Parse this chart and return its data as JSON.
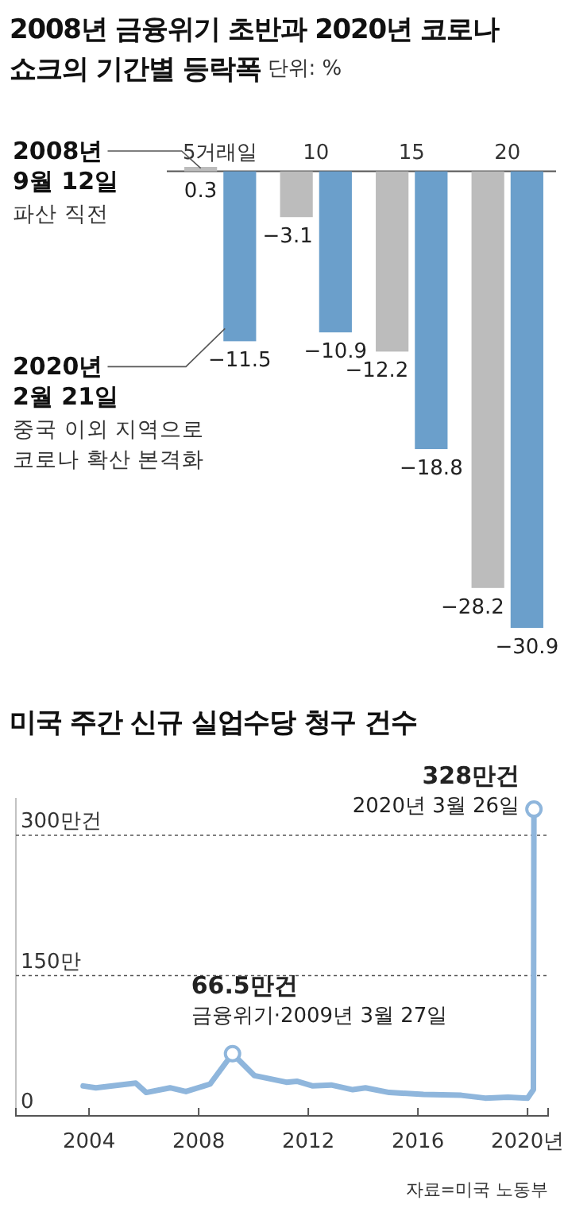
{
  "chart_data": [
    {
      "type": "bar",
      "title": "2008년 금융위기 초반과 2020년 코로나 쇼크의 기간별 등락폭",
      "subtitle": "단위: %",
      "categories": [
        "5거래일",
        "10",
        "15",
        "20"
      ],
      "series": [
        {
          "name": "2008년 9월 12일",
          "color": "#bcbcbc",
          "values": [
            0.3,
            -3.1,
            -12.2,
            -28.2
          ]
        },
        {
          "name": "2020년 2월 21일",
          "color": "#6b9fcb",
          "values": [
            -11.5,
            -10.9,
            -18.8,
            -30.9
          ]
        }
      ],
      "annotations": [
        "파산 직전",
        "중국 이외 지역으로 코로나 확산 본격화"
      ],
      "data_labels": true
    },
    {
      "type": "line",
      "title": "미국 주간 신규 실업수당 청구 건수",
      "x": [
        "2003-10-15",
        "2004-04-01",
        "2005-09-15",
        "2006-02-01",
        "2006-12-15",
        "2007-07-15",
        "2008-06-01",
        "2009-03-27",
        "2010-01-15",
        "2011-03-15",
        "2011-08-01",
        "2012-03-01",
        "2012-11-01",
        "2013-08-15",
        "2014-02-01",
        "2014-12-15",
        "2016-03-15",
        "2017-08-01",
        "2018-06-15",
        "2019-04-15",
        "2020-01-01",
        "2020-03-19",
        "2020-03-26"
      ],
      "series": [
        {
          "color": "#8fb6dc",
          "values": [
            32,
            30,
            35,
            25,
            30,
            26,
            34,
            66.5,
            43,
            36,
            37,
            32,
            33,
            28,
            30,
            25,
            23,
            22,
            19,
            20,
            19,
            28,
            328
          ]
        }
      ],
      "xlim": [
        "2001-05-01",
        "2020-10-01"
      ],
      "xticks": [
        {
          "value": "2004-01-01",
          "label": "2004"
        },
        {
          "value": "2008-01-01",
          "label": "2008"
        },
        {
          "value": "2012-01-01",
          "label": "2012"
        },
        {
          "value": "2016-01-01",
          "label": "2016"
        },
        {
          "value": "2020-01-01",
          "label": "2020년"
        }
      ],
      "ylim": [
        0,
        340
      ],
      "yticks": [
        0,
        {
          "value": 150,
          "label": "150만"
        },
        {
          "value": 300,
          "label": "300만건"
        }
      ],
      "grid": "y",
      "marker": "none",
      "line_style": "solid",
      "annotations": [
        {
          "text": "328만건",
          "x": "2020-03-26",
          "y": 328
        },
        {
          "text": "2020년 3월 26일",
          "x": "2020-03-26",
          "y": 328
        },
        {
          "text": "66.5만건",
          "x": "2009-03-27",
          "y": 66.5
        },
        {
          "text": "금융위기·2009년 3월 27일",
          "x": "2009-03-27",
          "y": 66.5
        },
        "자료=미국 노동부"
      ]
    }
  ]
}
